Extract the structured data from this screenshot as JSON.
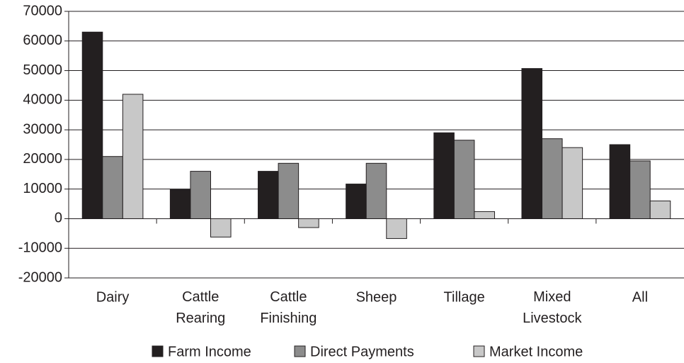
{
  "chart_data": {
    "type": "bar",
    "categories": [
      "Dairy",
      "Cattle Rearing",
      "Cattle Finishing",
      "Sheep",
      "Tillage",
      "Mixed Livestock",
      "All"
    ],
    "series": [
      {
        "name": "Farm Income",
        "color": "#231f20",
        "values": [
          63000,
          9800,
          16000,
          11700,
          29000,
          50700,
          25000
        ]
      },
      {
        "name": "Direct Payments",
        "color": "#8c8c8c",
        "values": [
          21000,
          16000,
          18700,
          18700,
          26500,
          27000,
          19500
        ]
      },
      {
        "name": "Market Income",
        "color": "#c8c8c8",
        "values": [
          42000,
          -6200,
          -3000,
          -6700,
          2400,
          24000,
          6000
        ]
      }
    ],
    "ylim": [
      -20000,
      70000
    ],
    "yticks": [
      -20000,
      -10000,
      0,
      10000,
      20000,
      30000,
      40000,
      50000,
      60000,
      70000
    ],
    "grid": true,
    "legend": "bottom"
  }
}
